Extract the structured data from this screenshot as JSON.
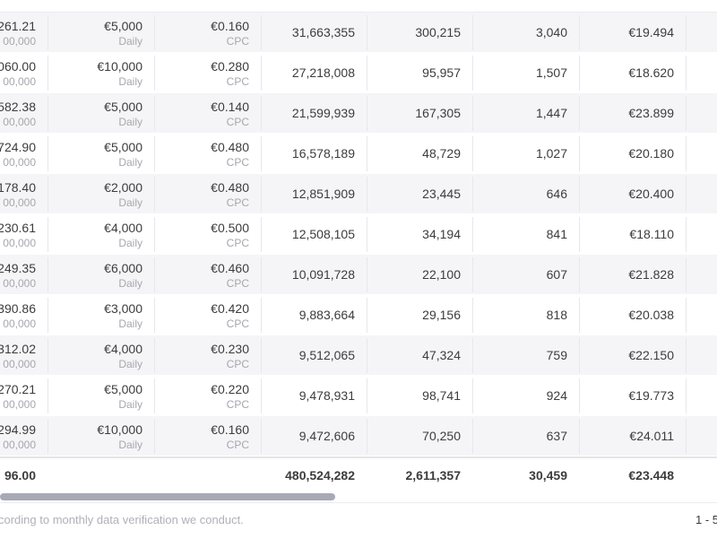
{
  "rows": [
    {
      "spend": "261.21",
      "budget_cap": "00,000",
      "budget": "€5,000",
      "budget_type": "Daily",
      "bid": "€0.160",
      "bid_type": "CPC",
      "impressions": "31,663,355",
      "clicks": "300,215",
      "conversions": "3,040",
      "cpa": "€19.494"
    },
    {
      "spend": "060.00",
      "budget_cap": "00,000",
      "budget": "€10,000",
      "budget_type": "Daily",
      "bid": "€0.280",
      "bid_type": "CPC",
      "impressions": "27,218,008",
      "clicks": "95,957",
      "conversions": "1,507",
      "cpa": "€18.620"
    },
    {
      "spend": "582.38",
      "budget_cap": "00,000",
      "budget": "€5,000",
      "budget_type": "Daily",
      "bid": "€0.140",
      "bid_type": "CPC",
      "impressions": "21,599,939",
      "clicks": "167,305",
      "conversions": "1,447",
      "cpa": "€23.899"
    },
    {
      "spend": "724.90",
      "budget_cap": "00,000",
      "budget": "€5,000",
      "budget_type": "Daily",
      "bid": "€0.480",
      "bid_type": "CPC",
      "impressions": "16,578,189",
      "clicks": "48,729",
      "conversions": "1,027",
      "cpa": "€20.180"
    },
    {
      "spend": "178.40",
      "budget_cap": "00,000",
      "budget": "€2,000",
      "budget_type": "Daily",
      "bid": "€0.480",
      "bid_type": "CPC",
      "impressions": "12,851,909",
      "clicks": "23,445",
      "conversions": "646",
      "cpa": "€20.400"
    },
    {
      "spend": "230.61",
      "budget_cap": "00,000",
      "budget": "€4,000",
      "budget_type": "Daily",
      "bid": "€0.500",
      "bid_type": "CPC",
      "impressions": "12,508,105",
      "clicks": "34,194",
      "conversions": "841",
      "cpa": "€18.110"
    },
    {
      "spend": "249.35",
      "budget_cap": "00,000",
      "budget": "€6,000",
      "budget_type": "Daily",
      "bid": "€0.460",
      "bid_type": "CPC",
      "impressions": "10,091,728",
      "clicks": "22,100",
      "conversions": "607",
      "cpa": "€21.828"
    },
    {
      "spend": "390.86",
      "budget_cap": "00,000",
      "budget": "€3,000",
      "budget_type": "Daily",
      "bid": "€0.420",
      "bid_type": "CPC",
      "impressions": "9,883,664",
      "clicks": "29,156",
      "conversions": "818",
      "cpa": "€20.038"
    },
    {
      "spend": "312.02",
      "budget_cap": "00,000",
      "budget": "€4,000",
      "budget_type": "Daily",
      "bid": "€0.230",
      "bid_type": "CPC",
      "impressions": "9,512,065",
      "clicks": "47,324",
      "conversions": "759",
      "cpa": "€22.150"
    },
    {
      "spend": "270.21",
      "budget_cap": "00,000",
      "budget": "€5,000",
      "budget_type": "Daily",
      "bid": "€0.220",
      "bid_type": "CPC",
      "impressions": "9,478,931",
      "clicks": "98,741",
      "conversions": "924",
      "cpa": "€19.773"
    },
    {
      "spend": "294.99",
      "budget_cap": "00,000",
      "budget": "€10,000",
      "budget_type": "Daily",
      "bid": "€0.160",
      "bid_type": "CPC",
      "impressions": "9,472,606",
      "clicks": "70,250",
      "conversions": "637",
      "cpa": "€24.011"
    }
  ],
  "totals": {
    "spend": "96.00",
    "impressions": "480,524,282",
    "clicks": "2,611,357",
    "conversions": "30,459",
    "cpa": "€23.448"
  },
  "footer": {
    "note": "cording to monthly data verification we conduct.",
    "pagination": "1 - 5"
  },
  "colors": {
    "row_stripe": "#f5f5f8",
    "text": "#3c3c3c",
    "muted": "#a6a6ae",
    "scrollbar_thumb": "#a7a9b6"
  }
}
